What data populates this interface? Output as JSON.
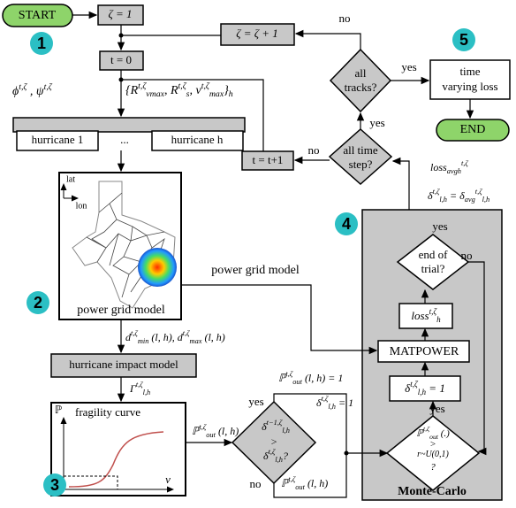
{
  "start": "START",
  "zeta_init": "ζ = 1",
  "t_init": "t = 0",
  "zeta_inc": "ζ = ζ + 1",
  "t_inc": "t = t+1",
  "steps": [
    "1",
    "2",
    "3",
    "4",
    "5"
  ],
  "all_tracks": [
    "all",
    "tracks?"
  ],
  "all_time": [
    "all time",
    "step?"
  ],
  "time_loss": [
    "time",
    "varying loss"
  ],
  "end": "END",
  "hurricane_first": "hurricane 1",
  "hurricane_dots": "...",
  "hurricane_last": "hurricane h",
  "map_lat": "lat",
  "map_lon": "lon",
  "map_caption": "power grid model",
  "grid_link": "power grid model",
  "impact_model": "hurricane impact model",
  "fragility_title": "fragility curve",
  "fragility_y": "ℙ",
  "fragility_x": "v",
  "end_trial": [
    "end of",
    "trial?"
  ],
  "matpower": "MATPOWER",
  "monte_carlo": "Monte-Carlo",
  "words": {
    "no_tracks": "no",
    "yes_tracks": "yes",
    "no_time": "no",
    "yes_time": "yes",
    "yes_mc_top": "yes",
    "no_trial": "no",
    "yes_mc": "yes",
    "yes_cmp": "yes",
    "no_cmp": "no"
  },
  "math": {
    "phi_psi": [
      {
        "t": "ϕ"
      },
      {
        "t": "t,ζ",
        "s": "sup"
      },
      {
        "t": " , ψ"
      },
      {
        "t": "t,ζ",
        "s": "sup"
      }
    ],
    "params": [
      {
        "t": "{R"
      },
      {
        "t": "t,ζ",
        "s": "sup"
      },
      {
        "t": "vmax",
        "s": "sub"
      },
      {
        "t": ", R"
      },
      {
        "t": "t,ζ",
        "s": "sup"
      },
      {
        "t": "s",
        "s": "sub"
      },
      {
        "t": ", v"
      },
      {
        "t": "t,ζ",
        "s": "sup"
      },
      {
        "t": "max",
        "s": "sub"
      },
      {
        "t": "}"
      },
      {
        "t": "h",
        "s": "sub"
      }
    ],
    "loss_avg": [
      {
        "t": "loss"
      },
      {
        "t": "avg",
        "s": "sub"
      },
      {
        "t": "h",
        "s": "sub"
      },
      {
        "t": "t,ζ",
        "s": "sup"
      }
    ],
    "delta_avg": [
      {
        "t": "δ"
      },
      {
        "t": "t,ζ",
        "s": "sup"
      },
      {
        "t": "l,h",
        "s": "sub"
      },
      {
        "t": " = δ"
      },
      {
        "t": "avg",
        "s": "sub"
      },
      {
        "t": "t,ζ",
        "s": "sup"
      },
      {
        "t": "l,h",
        "s": "sub"
      }
    ],
    "loss_h": [
      {
        "t": "loss"
      },
      {
        "t": "t,ζ",
        "s": "sup"
      },
      {
        "t": "h",
        "s": "sub"
      }
    ],
    "delta_one": [
      {
        "t": "δ"
      },
      {
        "t": "t,ζ",
        "s": "sup"
      },
      {
        "t": "l,h",
        "s": "sub"
      },
      {
        "t": " = 1"
      }
    ],
    "mc_test_1": [
      {
        "t": "ℙ"
      },
      {
        "t": "t,ζ",
        "s": "sup"
      },
      {
        "t": "out",
        "s": "sub"
      },
      {
        "t": " (.)"
      }
    ],
    "mc_test_2": [
      {
        "t": ">"
      }
    ],
    "mc_test_3": [
      {
        "t": "r~U(0,1)"
      }
    ],
    "mc_test_4": [
      {
        "t": "?"
      }
    ],
    "dist": [
      {
        "t": "d"
      },
      {
        "t": "t,ζ",
        "s": "sup"
      },
      {
        "t": "min",
        "s": "sub"
      },
      {
        "t": " (l, h), d"
      },
      {
        "t": "t,ζ",
        "s": "sup"
      },
      {
        "t": "max",
        "s": "sub"
      },
      {
        "t": " (l, h)"
      }
    ],
    "gamma": [
      {
        "t": "Γ"
      },
      {
        "t": "t,ζ",
        "s": "sup"
      },
      {
        "t": "l,h",
        "s": "sub"
      }
    ],
    "p_out": [
      {
        "t": "ℙ"
      },
      {
        "t": "t,ζ",
        "s": "sup"
      },
      {
        "t": "out",
        "s": "sub"
      },
      {
        "t": " (l, h)"
      }
    ],
    "cmp_1": [
      {
        "t": "δ"
      },
      {
        "t": "t−1,ζ",
        "s": "sup"
      },
      {
        "t": "l,h",
        "s": "sub"
      }
    ],
    "cmp_2": [
      {
        "t": ">"
      }
    ],
    "cmp_3": [
      {
        "t": "δ"
      },
      {
        "t": "t,ζ",
        "s": "sup"
      },
      {
        "t": "l,h",
        "s": "sub"
      },
      {
        "t": "?"
      }
    ],
    "p_one": [
      {
        "t": "ℙ"
      },
      {
        "t": "t,ζ",
        "s": "sup"
      },
      {
        "t": "out",
        "s": "sub"
      },
      {
        "t": " (l, h) = 1"
      }
    ],
    "delta_yes": [
      {
        "t": "δ"
      },
      {
        "t": "t,ζ",
        "s": "sup"
      },
      {
        "t": "l,h",
        "s": "sub"
      },
      {
        "t": " = 1"
      }
    ],
    "p_keep": [
      {
        "t": "ℙ"
      },
      {
        "t": "t,ζ",
        "s": "sup"
      },
      {
        "t": "out",
        "s": "sub"
      },
      {
        "t": " (l, h)"
      }
    ]
  }
}
